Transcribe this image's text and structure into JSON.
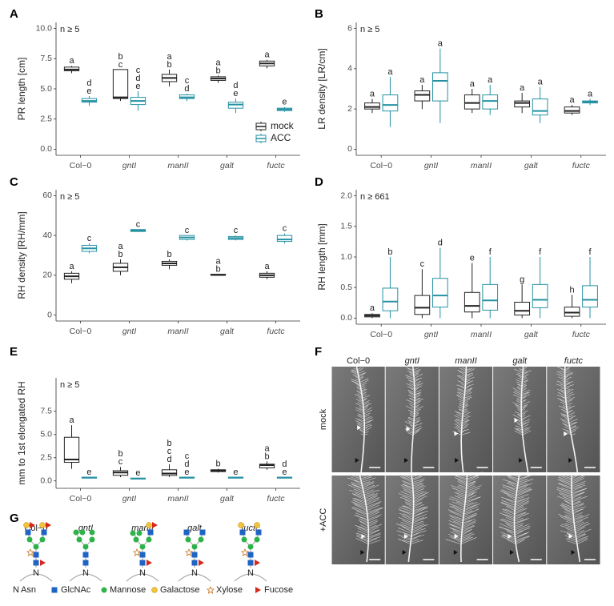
{
  "chart_data": [
    {
      "panel": "A",
      "type": "box",
      "annotation": "n ≥ 5",
      "y_label": "PR length [cm]",
      "categories": [
        "Col−0",
        "gntI",
        "manII",
        "galt",
        "fuctc"
      ],
      "ylim": [
        -0.5,
        10.5
      ],
      "yticks": [
        {
          "value": 0,
          "label": "0.0"
        },
        2.5,
        {
          "value": 5,
          "label": "5.0"
        },
        7.5,
        {
          "value": 10,
          "label": "10.0"
        }
      ],
      "legend": "bottom-right",
      "series": [
        {
          "name": "mock",
          "color": "#222222",
          "boxes": [
            [
              6.3,
              6.5,
              6.6,
              6.8,
              6.9
            ],
            [
              4.0,
              4.2,
              4.3,
              6.6,
              6.6
            ],
            [
              5.2,
              5.6,
              5.9,
              6.2,
              6.6
            ],
            [
              5.5,
              5.7,
              5.85,
              6.0,
              6.1
            ],
            [
              6.7,
              6.9,
              7.1,
              7.3,
              7.4
            ]
          ],
          "letters": [
            [
              "a"
            ],
            [
              "b",
              "c"
            ],
            [
              "a",
              "b"
            ],
            [
              "a",
              "b"
            ],
            [
              "a"
            ]
          ]
        },
        {
          "name": "ACC",
          "color": "#2592a3",
          "boxes": [
            [
              3.6,
              3.9,
              4.0,
              4.2,
              4.4
            ],
            [
              3.2,
              3.7,
              4.0,
              4.3,
              4.8
            ],
            [
              4.0,
              4.2,
              4.3,
              4.5,
              4.6
            ],
            [
              3.0,
              3.4,
              3.7,
              3.9,
              4.2
            ],
            [
              3.1,
              3.2,
              3.3,
              3.4,
              3.5
            ]
          ],
          "letters": [
            [
              "d",
              "e"
            ],
            [
              "c",
              "d",
              "e"
            ],
            [
              "c",
              "d"
            ],
            [
              "d",
              "e"
            ],
            [
              "e"
            ]
          ]
        }
      ]
    },
    {
      "panel": "B",
      "type": "box",
      "annotation": "n ≥ 5",
      "y_label": "LR density [LR/cm]",
      "categories": [
        "Col−0",
        "gntI",
        "manII",
        "galt",
        "fuctc"
      ],
      "ylim": [
        -0.3,
        6.3
      ],
      "yticks": [
        0,
        2,
        4,
        6
      ],
      "series": [
        {
          "color": "#222222",
          "boxes": [
            [
              1.8,
              2.0,
              2.1,
              2.3,
              2.5
            ],
            [
              2.0,
              2.4,
              2.7,
              2.9,
              3.2
            ],
            [
              1.8,
              2.0,
              2.3,
              2.7,
              3.0
            ],
            [
              1.8,
              2.1,
              2.3,
              2.4,
              2.8
            ],
            [
              1.7,
              1.8,
              1.9,
              2.1,
              2.2
            ]
          ],
          "letters": [
            [
              "a"
            ],
            [
              "a"
            ],
            [
              "a"
            ],
            [
              "a"
            ],
            [
              "a"
            ]
          ]
        },
        {
          "color": "#2592a3",
          "boxes": [
            [
              1.1,
              1.9,
              2.2,
              2.7,
              3.6
            ],
            [
              1.3,
              2.4,
              3.4,
              3.8,
              5.0
            ],
            [
              1.7,
              2.0,
              2.4,
              2.7,
              3.2
            ],
            [
              1.3,
              1.7,
              1.9,
              2.5,
              3.1
            ],
            [
              2.2,
              2.3,
              2.35,
              2.4,
              2.5
            ]
          ],
          "letters": [
            [
              "a"
            ],
            [
              "a"
            ],
            [
              "a"
            ],
            [
              "a"
            ],
            [
              "a"
            ]
          ]
        }
      ]
    },
    {
      "panel": "C",
      "type": "box",
      "annotation": "n ≥ 5",
      "y_label": "RH density [RH/mm]",
      "categories": [
        "Col−0",
        "gntI",
        "manII",
        "galt",
        "fuctc"
      ],
      "ylim": [
        -3,
        63
      ],
      "yticks": [
        0,
        20,
        40,
        60
      ],
      "series": [
        {
          "color": "#222222",
          "boxes": [
            [
              16,
              18,
              19.5,
              21,
              22
            ],
            [
              20,
              22,
              24,
              26,
              28
            ],
            [
              23,
              25,
              26,
              27,
              28
            ],
            [
              20,
              20,
              20.2,
              20.5,
              20.5
            ],
            [
              18,
              19,
              20,
              21,
              22
            ]
          ],
          "letters": [
            [
              "a"
            ],
            [
              "a",
              "b"
            ],
            [
              "b"
            ],
            [
              "a",
              "b"
            ],
            [
              "a"
            ]
          ]
        },
        {
          "color": "#2592a3",
          "boxes": [
            [
              31,
              32,
              33.5,
              35,
              36
            ],
            [
              42,
              42,
              42.5,
              43,
              43
            ],
            [
              37.5,
              38,
              39,
              40,
              40
            ],
            [
              37.5,
              38,
              38.7,
              39.5,
              40
            ],
            [
              36,
              37,
              38,
              40,
              41
            ]
          ],
          "letters": [
            [
              "c"
            ],
            [
              "c"
            ],
            [
              "c"
            ],
            [
              "c"
            ],
            [
              "c"
            ]
          ]
        }
      ]
    },
    {
      "panel": "D",
      "type": "box",
      "annotation": "n ≥ 661",
      "y_label": "RH length [mm]",
      "categories": [
        "Col−0",
        "gntI",
        "manII",
        "galt",
        "fuctc"
      ],
      "ylim": [
        -0.1,
        2.1
      ],
      "yticks": [
        {
          "value": 0,
          "label": "0.0"
        },
        0.5,
        {
          "value": 1,
          "label": "1.0"
        },
        1.5,
        {
          "value": 2,
          "label": "2.0"
        }
      ],
      "series": [
        {
          "color": "#222222",
          "boxes": [
            [
              0,
              0.02,
              0.04,
              0.06,
              0.08
            ],
            [
              0,
              0.06,
              0.17,
              0.37,
              0.8
            ],
            [
              0,
              0.1,
              0.2,
              0.42,
              0.9
            ],
            [
              0,
              0.05,
              0.12,
              0.26,
              0.55
            ],
            [
              0,
              0.03,
              0.09,
              0.18,
              0.38
            ]
          ],
          "letters": [
            [
              "a"
            ],
            [
              "c"
            ],
            [
              "e"
            ],
            [
              "g"
            ],
            [
              "h"
            ]
          ]
        },
        {
          "color": "#2592a3",
          "boxes": [
            [
              0,
              0.12,
              0.27,
              0.49,
              1.0
            ],
            [
              0,
              0.18,
              0.37,
              0.65,
              1.15
            ],
            [
              0,
              0.13,
              0.29,
              0.55,
              1.0
            ],
            [
              0,
              0.17,
              0.3,
              0.55,
              1.0
            ],
            [
              0,
              0.18,
              0.3,
              0.53,
              1.0
            ]
          ],
          "letters": [
            [
              "b"
            ],
            [
              "d"
            ],
            [
              "f"
            ],
            [
              "f"
            ],
            [
              "f"
            ]
          ]
        }
      ]
    },
    {
      "panel": "E",
      "type": "box",
      "annotation": "n ≥ 5",
      "y_label": "mm to 1st elongated RH",
      "categories": [
        "Col−0",
        "gntI",
        "manII",
        "galt",
        "fuctc"
      ],
      "ylim": [
        -0.8,
        11.1
      ],
      "yticks": [
        {
          "value": 0,
          "label": "0.0"
        },
        2.5,
        {
          "value": 5,
          "label": "5.0"
        },
        7.5
      ],
      "series": [
        {
          "color": "#222222",
          "boxes": [
            [
              1.3,
              2.0,
              2.3,
              4.7,
              6.0
            ],
            [
              0.4,
              0.6,
              0.9,
              1.1,
              1.5
            ],
            [
              0.4,
              0.6,
              0.8,
              1.2,
              1.8
            ],
            [
              0.9,
              1.0,
              1.1,
              1.2,
              1.3
            ],
            [
              1.2,
              1.4,
              1.7,
              1.8,
              2.1
            ]
          ],
          "letters": [
            [
              "a"
            ],
            [
              "b",
              "c"
            ],
            [
              "b",
              "c",
              "d"
            ],
            [
              "b"
            ],
            [
              "a",
              "b"
            ]
          ]
        },
        {
          "color": "#2592a3",
          "boxes": [
            [
              0.3,
              0.3,
              0.35,
              0.4,
              0.4
            ],
            [
              0.2,
              0.2,
              0.25,
              0.3,
              0.3
            ],
            [
              0.3,
              0.3,
              0.35,
              0.4,
              0.4
            ],
            [
              0.3,
              0.3,
              0.35,
              0.4,
              0.4
            ],
            [
              0.3,
              0.3,
              0.35,
              0.4,
              0.4
            ]
          ],
          "letters": [
            [
              "e"
            ],
            [
              "e"
            ],
            [
              "c",
              "d",
              "e"
            ],
            [
              "e"
            ],
            [
              "d",
              "e"
            ]
          ]
        }
      ]
    }
  ],
  "photo_panel": {
    "panel": "F",
    "columns": [
      "Col−0",
      "gntI",
      "manII",
      "galt",
      "fuctc"
    ],
    "rows": [
      "mock",
      "+ACC"
    ]
  },
  "glycan_panel": {
    "panel": "G",
    "genotypes": [
      "Col−0",
      "gntI",
      "manII",
      "galt",
      "fuctc"
    ],
    "asn_symbol": "N",
    "legend": [
      "Asn",
      "GlcNAc",
      "Mannose",
      "Galactose",
      "Xylose",
      "Fucose"
    ]
  }
}
